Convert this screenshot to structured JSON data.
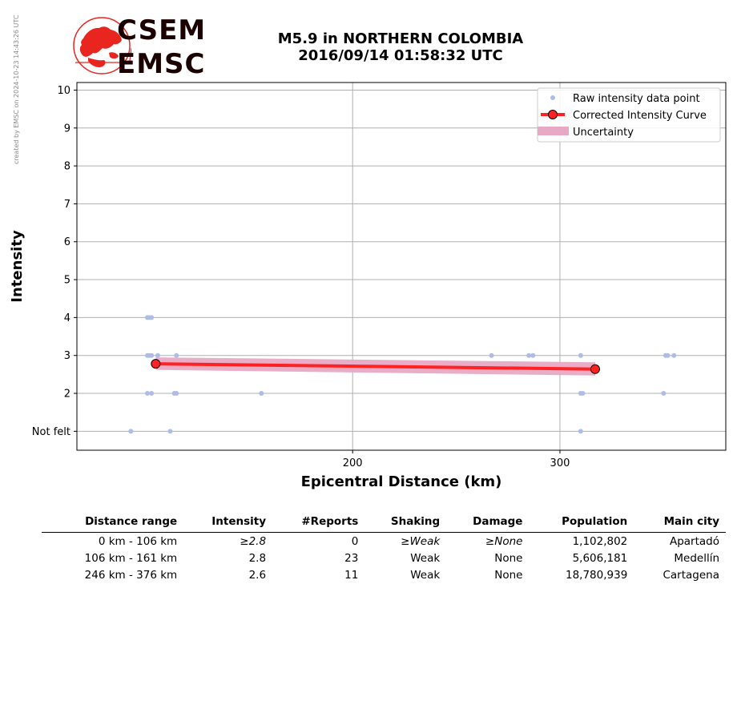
{
  "credit": "created by EMSC on 2024-10-23 14:43:26 UTC",
  "logo": {
    "line1": "CSEM",
    "line2": "EMSC"
  },
  "title": {
    "line1": "M5.9 in NORTHERN COLOMBIA",
    "line2": "2016/09/14 01:58:32 UTC"
  },
  "colors": {
    "points": "#aebde8",
    "curve": "#ff2222",
    "uncertainty": "#e8a9c4",
    "logo": "#e8251f"
  },
  "chart_data": {
    "type": "scatter",
    "xlabel": "Epicentral Distance (km)",
    "ylabel": "Intensity",
    "xlim": [
      67,
      380
    ],
    "ylim": [
      0.5,
      10.2
    ],
    "xticks": [
      200,
      300
    ],
    "yticks": [
      {
        "value": 1,
        "label": "Not felt"
      },
      {
        "value": 2,
        "label": "2"
      },
      {
        "value": 3,
        "label": "3"
      },
      {
        "value": 4,
        "label": "4"
      },
      {
        "value": 5,
        "label": "5"
      },
      {
        "value": 6,
        "label": "6"
      },
      {
        "value": 7,
        "label": "7"
      },
      {
        "value": 8,
        "label": "8"
      },
      {
        "value": 9,
        "label": "9"
      },
      {
        "value": 10,
        "label": "10"
      }
    ],
    "grid": true,
    "legend_position": "top-right",
    "legend": [
      "Raw intensity data point",
      "Corrected Intensity Curve",
      "Uncertainty"
    ],
    "raw_points": [
      {
        "x": 93,
        "y": 1
      },
      {
        "x": 112,
        "y": 1
      },
      {
        "x": 310,
        "y": 1
      },
      {
        "x": 101,
        "y": 2
      },
      {
        "x": 103,
        "y": 2
      },
      {
        "x": 114,
        "y": 2
      },
      {
        "x": 115,
        "y": 2
      },
      {
        "x": 156,
        "y": 2
      },
      {
        "x": 310,
        "y": 2
      },
      {
        "x": 311,
        "y": 2
      },
      {
        "x": 350,
        "y": 2
      },
      {
        "x": 101,
        "y": 3
      },
      {
        "x": 102,
        "y": 3
      },
      {
        "x": 103,
        "y": 3
      },
      {
        "x": 106,
        "y": 3
      },
      {
        "x": 115,
        "y": 3
      },
      {
        "x": 267,
        "y": 3
      },
      {
        "x": 285,
        "y": 3
      },
      {
        "x": 287,
        "y": 3
      },
      {
        "x": 310,
        "y": 3
      },
      {
        "x": 351,
        "y": 3
      },
      {
        "x": 352,
        "y": 3
      },
      {
        "x": 355,
        "y": 3
      },
      {
        "x": 101,
        "y": 4
      },
      {
        "x": 102,
        "y": 4
      },
      {
        "x": 103,
        "y": 4
      }
    ],
    "curve": [
      {
        "x": 105,
        "y": 2.78
      },
      {
        "x": 317,
        "y": 2.64
      }
    ],
    "uncertainty_upper": [
      {
        "x": 105,
        "y": 2.95
      },
      {
        "x": 317,
        "y": 2.82
      }
    ],
    "uncertainty_lower": [
      {
        "x": 105,
        "y": 2.62
      },
      {
        "x": 317,
        "y": 2.47
      }
    ]
  },
  "table": {
    "headers": [
      "Distance range",
      "Intensity",
      "#Reports",
      "Shaking",
      "Damage",
      "Population",
      "Main city"
    ],
    "rows": [
      [
        "0 km -  106 km",
        "≥2.8",
        "0",
        "≥Weak",
        "≥None",
        "1,102,802",
        "Apartadó"
      ],
      [
        "106 km -  161 km",
        "2.8",
        "23",
        "Weak",
        "None",
        "5,606,181",
        "Medellín"
      ],
      [
        "246 km -  376 km",
        "2.6",
        "11",
        "Weak",
        "None",
        "18,780,939",
        "Cartagena"
      ]
    ]
  }
}
